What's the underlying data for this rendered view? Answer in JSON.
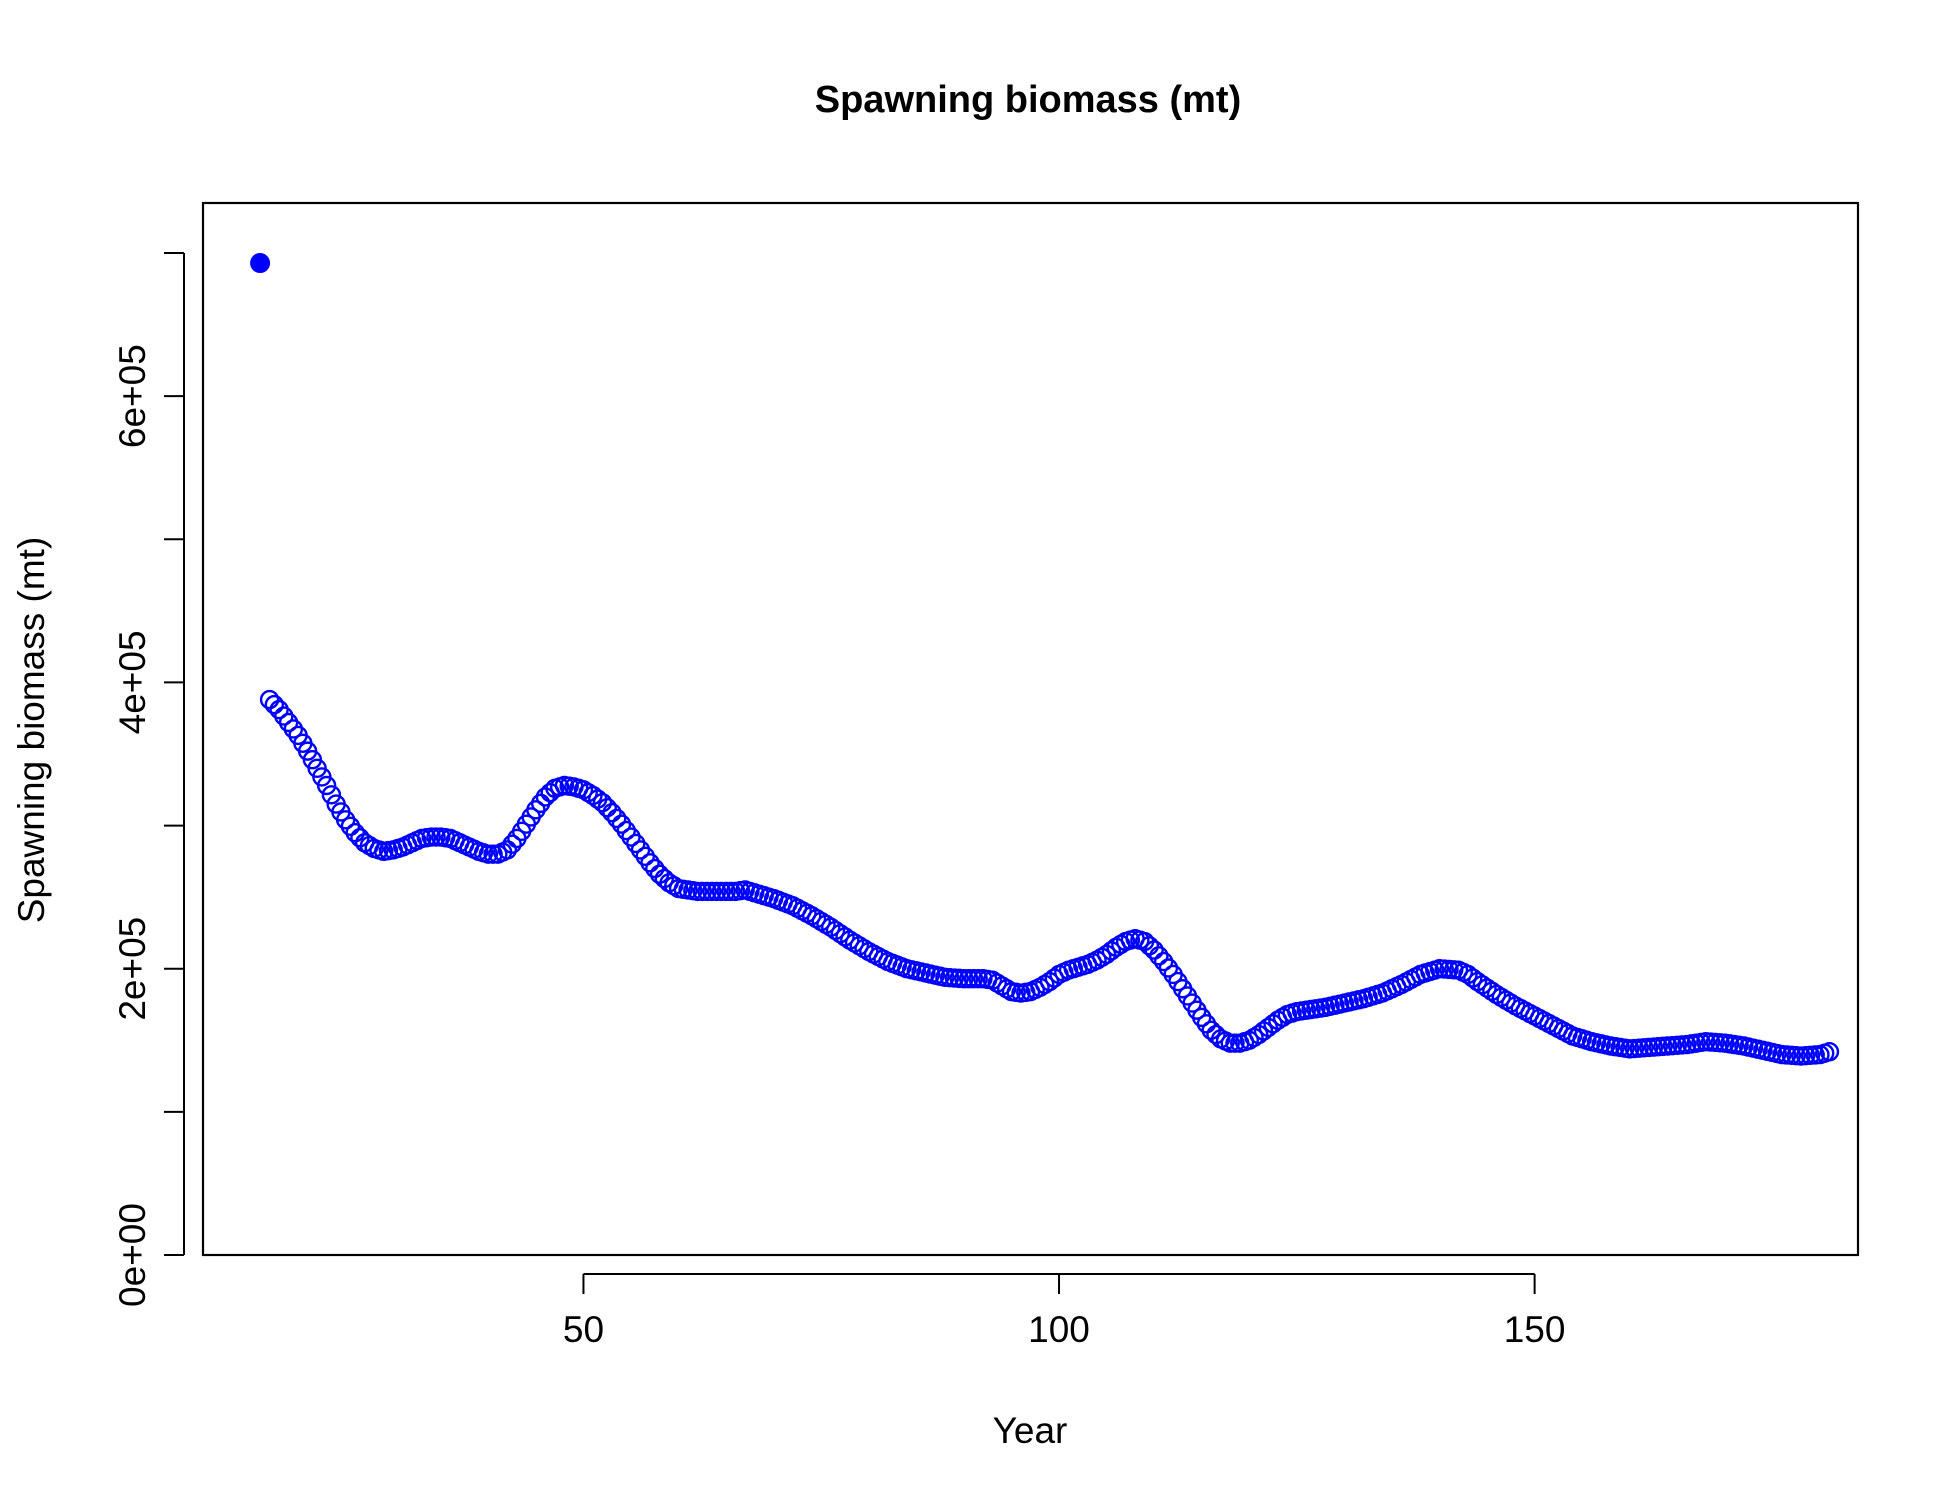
{
  "chart_data": {
    "type": "scatter",
    "title": "Spawning biomass (mt)",
    "xlabel": "Year",
    "ylabel": "Spawning biomass (mt)",
    "xlim": [
      10,
      184
    ],
    "ylim": [
      0,
      700000
    ],
    "x_ticks": [
      {
        "value": 50,
        "label": "50"
      },
      {
        "value": 100,
        "label": "100"
      },
      {
        "value": 150,
        "label": "150"
      }
    ],
    "y_ticks": [
      {
        "value": 0,
        "label": "0e+00"
      },
      {
        "value": 100000,
        "label": ""
      },
      {
        "value": 200000,
        "label": "2e+05"
      },
      {
        "value": 300000,
        "label": ""
      },
      {
        "value": 400000,
        "label": "4e+05"
      },
      {
        "value": 500000,
        "label": ""
      },
      {
        "value": 600000,
        "label": "6e+05"
      },
      {
        "value": 700000,
        "label": ""
      }
    ],
    "grid": false,
    "color": "#0000FF",
    "series": [
      {
        "marker": "filled-circle",
        "x": [
          16
        ],
        "y": [
          693000
        ]
      },
      {
        "marker": "open-circle",
        "anchors": [
          [
            17,
            388000
          ],
          [
            18,
            381000
          ],
          [
            19,
            372000
          ],
          [
            20,
            363000
          ],
          [
            21,
            352000
          ],
          [
            22,
            340000
          ],
          [
            23,
            328000
          ],
          [
            24,
            315000
          ],
          [
            25,
            304000
          ],
          [
            26,
            295000
          ],
          [
            27,
            288000
          ],
          [
            28,
            284000
          ],
          [
            29,
            282000
          ],
          [
            30,
            283000
          ],
          [
            31,
            285000
          ],
          [
            32,
            288000
          ],
          [
            33,
            291000
          ],
          [
            34,
            292000
          ],
          [
            35,
            292000
          ],
          [
            36,
            291000
          ],
          [
            37,
            288000
          ],
          [
            38,
            285000
          ],
          [
            39,
            282000
          ],
          [
            40,
            280000
          ],
          [
            41,
            280000
          ],
          [
            42,
            283000
          ],
          [
            43,
            291000
          ],
          [
            44,
            301000
          ],
          [
            45,
            311000
          ],
          [
            46,
            320000
          ],
          [
            47,
            326000
          ],
          [
            48,
            328000
          ],
          [
            49,
            327000
          ],
          [
            50,
            325000
          ],
          [
            51,
            321000
          ],
          [
            52,
            316000
          ],
          [
            53,
            309000
          ],
          [
            54,
            301000
          ],
          [
            55,
            292000
          ],
          [
            56,
            283000
          ],
          [
            57,
            274000
          ],
          [
            58,
            266000
          ],
          [
            59,
            260000
          ],
          [
            60,
            256000
          ],
          [
            62,
            254000
          ],
          [
            64,
            254000
          ],
          [
            66,
            254000
          ],
          [
            67,
            255000
          ],
          [
            68,
            253000
          ],
          [
            70,
            249000
          ],
          [
            72,
            244000
          ],
          [
            74,
            237000
          ],
          [
            76,
            229000
          ],
          [
            78,
            220000
          ],
          [
            80,
            212000
          ],
          [
            82,
            205000
          ],
          [
            84,
            200000
          ],
          [
            86,
            197000
          ],
          [
            88,
            194000
          ],
          [
            90,
            193000
          ],
          [
            92,
            193000
          ],
          [
            93,
            192000
          ],
          [
            94,
            188000
          ],
          [
            95,
            184000
          ],
          [
            96,
            183000
          ],
          [
            97,
            184000
          ],
          [
            98,
            187000
          ],
          [
            99,
            191000
          ],
          [
            100,
            196000
          ],
          [
            101,
            199000
          ],
          [
            102,
            201000
          ],
          [
            103,
            203000
          ],
          [
            104,
            206000
          ],
          [
            105,
            210000
          ],
          [
            106,
            215000
          ],
          [
            107,
            219000
          ],
          [
            108,
            221000
          ],
          [
            109,
            219000
          ],
          [
            110,
            213000
          ],
          [
            111,
            205000
          ],
          [
            112,
            196000
          ],
          [
            113,
            186000
          ],
          [
            114,
            176000
          ],
          [
            115,
            166000
          ],
          [
            116,
            157000
          ],
          [
            117,
            151000
          ],
          [
            118,
            148000
          ],
          [
            119,
            148000
          ],
          [
            120,
            150000
          ],
          [
            121,
            154000
          ],
          [
            122,
            159000
          ],
          [
            123,
            164000
          ],
          [
            124,
            168000
          ],
          [
            125,
            170000
          ],
          [
            126,
            171000
          ],
          [
            128,
            173000
          ],
          [
            130,
            176000
          ],
          [
            132,
            179000
          ],
          [
            134,
            183000
          ],
          [
            136,
            189000
          ],
          [
            138,
            196000
          ],
          [
            140,
            200000
          ],
          [
            142,
            199000
          ],
          [
            143,
            196000
          ],
          [
            144,
            191000
          ],
          [
            146,
            182000
          ],
          [
            148,
            174000
          ],
          [
            150,
            167000
          ],
          [
            152,
            160000
          ],
          [
            154,
            153000
          ],
          [
            156,
            149000
          ],
          [
            158,
            146000
          ],
          [
            160,
            144000
          ],
          [
            162,
            145000
          ],
          [
            164,
            146000
          ],
          [
            166,
            147000
          ],
          [
            168,
            149000
          ],
          [
            170,
            148000
          ],
          [
            172,
            146000
          ],
          [
            174,
            143000
          ],
          [
            176,
            140000
          ],
          [
            178,
            139000
          ],
          [
            180,
            140000
          ],
          [
            181,
            142000
          ]
        ]
      }
    ]
  }
}
